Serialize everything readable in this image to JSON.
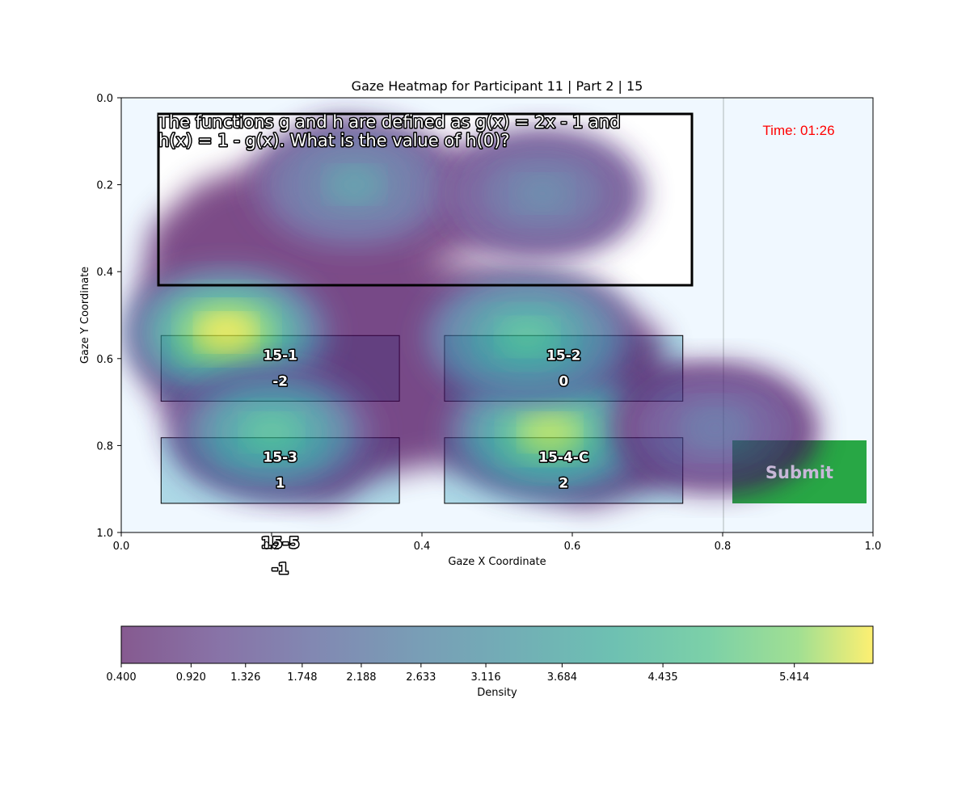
{
  "chart_data": {
    "type": "heatmap",
    "title": "Gaze Heatmap for Participant 11 | Part 2 | 15",
    "xlabel": "Gaze X Coordinate",
    "ylabel": "Gaze Y Coordinate",
    "xlim": [
      0.0,
      1.0
    ],
    "ylim": [
      1.0,
      0.0
    ],
    "x_ticks": [
      "0.0",
      "0.2",
      "0.4",
      "0.6",
      "0.8",
      "1.0"
    ],
    "y_ticks": [
      "0.0",
      "0.2",
      "0.4",
      "0.6",
      "0.8",
      "1.0"
    ],
    "colorbar": {
      "label": "Density",
      "ticks": [
        "0.400",
        "0.920",
        "1.326",
        "1.748",
        "2.188",
        "2.633",
        "3.116",
        "3.684",
        "4.435",
        "5.414"
      ],
      "levels": [
        0.4,
        0.92,
        1.326,
        1.748,
        2.188,
        2.633,
        3.116,
        3.684,
        4.435,
        5.414,
        6.0
      ]
    },
    "density_peaks": [
      {
        "x": 0.14,
        "y": 0.54,
        "value": 6.0
      },
      {
        "x": 0.57,
        "y": 0.77,
        "value": 5.6
      },
      {
        "x": 0.54,
        "y": 0.55,
        "value": 4.2
      },
      {
        "x": 0.2,
        "y": 0.77,
        "value": 3.9
      },
      {
        "x": 0.31,
        "y": 0.2,
        "value": 2.6
      },
      {
        "x": 0.56,
        "y": 0.22,
        "value": 2.0
      },
      {
        "x": 0.79,
        "y": 0.76,
        "value": 1.6
      }
    ]
  },
  "question": {
    "line1": "The functions g and h are defined as g(x) = 2x - 1 and",
    "line2": "h(x) = 1 - g(x). What is the value of h(0)?"
  },
  "timer": {
    "text": "Time: 01:26",
    "color": "#ff0000"
  },
  "options": [
    {
      "id": "15-1",
      "value": "-2"
    },
    {
      "id": "15-2",
      "value": "0"
    },
    {
      "id": "15-3",
      "value": "1"
    },
    {
      "id": "15-4-C",
      "value": "2"
    },
    {
      "id": "15-5",
      "value": "-1"
    }
  ],
  "submit": {
    "label": "Submit",
    "color": "#28a745"
  },
  "colors": {
    "background": "#f0f8ff",
    "option_box": "#add8e6"
  }
}
